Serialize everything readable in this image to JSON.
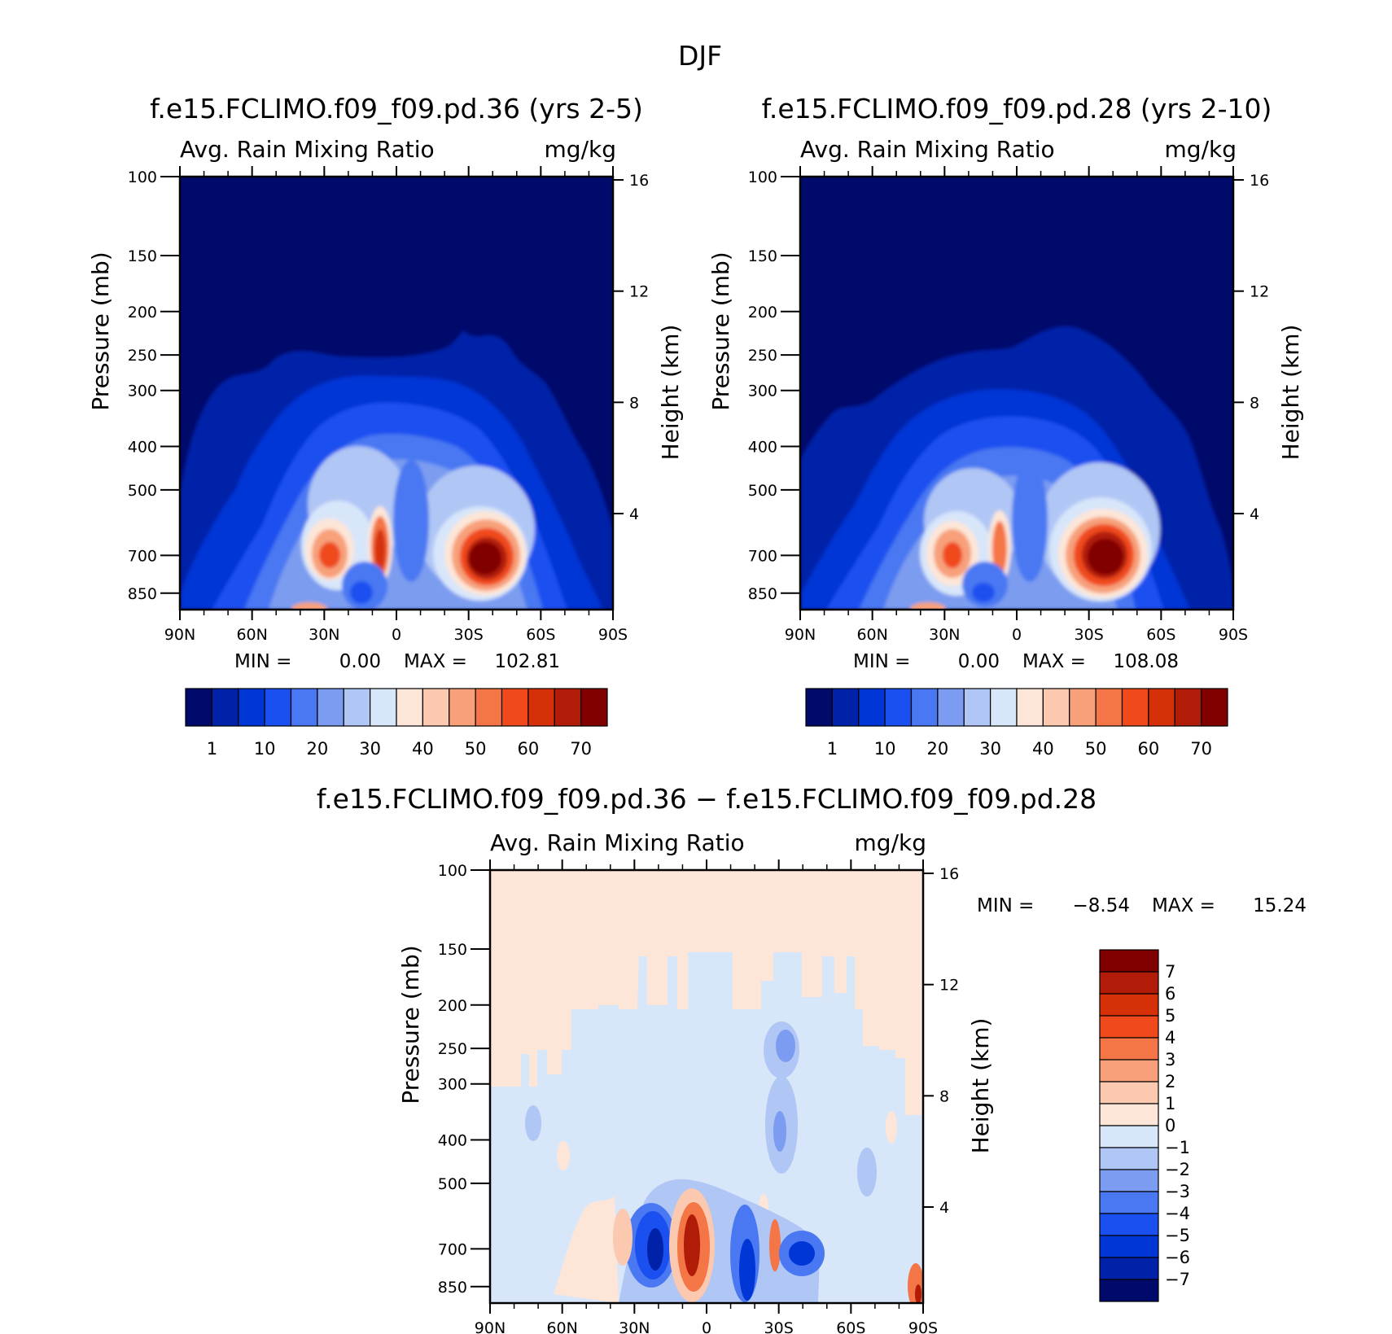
{
  "figure": {
    "title": "DJF"
  },
  "chart_data": [
    {
      "id": "model-36",
      "type": "heatmap",
      "title": "f.e15.FCLIMO.f09_f09.pd.36 (yrs 2-5)",
      "left_label": "Avg. Rain Mixing Ratio",
      "right_label": "mg/kg",
      "xlabel": "",
      "ylabel": "Pressure (mb)",
      "y2label": "Height (km)",
      "x_ticks": [
        "90N",
        "60N",
        "30N",
        "0",
        "30S",
        "60S",
        "90S"
      ],
      "x_values": [
        90,
        60,
        30,
        0,
        -30,
        -60,
        -90
      ],
      "y_ticks": [
        100,
        150,
        200,
        250,
        300,
        400,
        500,
        700,
        850
      ],
      "y_range_mb": [
        100,
        925
      ],
      "y2_ticks": [
        16,
        12,
        8,
        4
      ],
      "stats": {
        "min_label": "MIN =",
        "min": "0.00",
        "max_label": "MAX =",
        "max": "102.81"
      },
      "colorbar": {
        "orientation": "horizontal",
        "labels": [
          "1",
          "10",
          "20",
          "30",
          "40",
          "50",
          "60",
          "70"
        ],
        "levels": [
          1,
          5,
          10,
          15,
          20,
          25,
          30,
          35,
          40,
          45,
          50,
          55,
          60,
          65,
          70
        ],
        "colors": [
          "#000a6b",
          "#0022a8",
          "#0036d6",
          "#1a50f0",
          "#4a78f2",
          "#7b9cf0",
          "#b0c6f5",
          "#d8e6fa",
          "#fde6d8",
          "#fbc8b0",
          "#f7a07a",
          "#f47545",
          "#f04a1c",
          "#d63008",
          "#b01c08",
          "#800000"
        ]
      }
    },
    {
      "id": "model-28",
      "type": "heatmap",
      "title": "f.e15.FCLIMO.f09_f09.pd.28 (yrs 2-10)",
      "left_label": "Avg. Rain Mixing Ratio",
      "right_label": "mg/kg",
      "xlabel": "",
      "ylabel": "Pressure (mb)",
      "y2label": "Height (km)",
      "x_ticks": [
        "90N",
        "60N",
        "30N",
        "0",
        "30S",
        "60S",
        "90S"
      ],
      "x_values": [
        90,
        60,
        30,
        0,
        -30,
        -60,
        -90
      ],
      "y_ticks": [
        100,
        150,
        200,
        250,
        300,
        400,
        500,
        700,
        850
      ],
      "y_range_mb": [
        100,
        925
      ],
      "y2_ticks": [
        16,
        12,
        8,
        4
      ],
      "stats": {
        "min_label": "MIN =",
        "min": "0.00",
        "max_label": "MAX =",
        "max": "108.08"
      },
      "colorbar": {
        "orientation": "horizontal",
        "labels": [
          "1",
          "10",
          "20",
          "30",
          "40",
          "50",
          "60",
          "70"
        ],
        "levels": [
          1,
          5,
          10,
          15,
          20,
          25,
          30,
          35,
          40,
          45,
          50,
          55,
          60,
          65,
          70
        ],
        "colors": [
          "#000a6b",
          "#0022a8",
          "#0036d6",
          "#1a50f0",
          "#4a78f2",
          "#7b9cf0",
          "#b0c6f5",
          "#d8e6fa",
          "#fde6d8",
          "#fbc8b0",
          "#f7a07a",
          "#f47545",
          "#f04a1c",
          "#d63008",
          "#b01c08",
          "#800000"
        ]
      }
    },
    {
      "id": "difference",
      "type": "heatmap",
      "title": "f.e15.FCLIMO.f09_f09.pd.36 − f.e15.FCLIMO.f09_f09.pd.28",
      "left_label": "Avg. Rain Mixing Ratio",
      "right_label": "mg/kg",
      "xlabel": "",
      "ylabel": "Pressure (mb)",
      "y2label": "Height (km)",
      "x_ticks": [
        "90N",
        "60N",
        "30N",
        "0",
        "30S",
        "60S",
        "90S"
      ],
      "x_values": [
        90,
        60,
        30,
        0,
        -30,
        -60,
        -90
      ],
      "y_ticks": [
        100,
        150,
        200,
        250,
        300,
        400,
        500,
        700,
        850
      ],
      "y_range_mb": [
        100,
        925
      ],
      "y2_ticks": [
        16,
        12,
        8,
        4
      ],
      "stats": {
        "min_label": "MIN =",
        "min": "−8.54",
        "max_label": "MAX =",
        "max": "15.24"
      },
      "colorbar": {
        "orientation": "vertical",
        "labels": [
          "7",
          "6",
          "5",
          "4",
          "3",
          "2",
          "1",
          "0",
          "−1",
          "−2",
          "−3",
          "−4",
          "−5",
          "−6",
          "−7"
        ],
        "levels": [
          7,
          6,
          5,
          4,
          3,
          2,
          1,
          0,
          -1,
          -2,
          -3,
          -4,
          -5,
          -6,
          -7
        ],
        "colors": [
          "#800000",
          "#b01c08",
          "#d63008",
          "#f04a1c",
          "#f47545",
          "#f7a07a",
          "#fbc8b0",
          "#fde6d8",
          "#d8e6fa",
          "#b0c6f5",
          "#7b9cf0",
          "#4a78f2",
          "#1a50f0",
          "#0036d6",
          "#0022a8",
          "#000a6b"
        ]
      }
    }
  ]
}
